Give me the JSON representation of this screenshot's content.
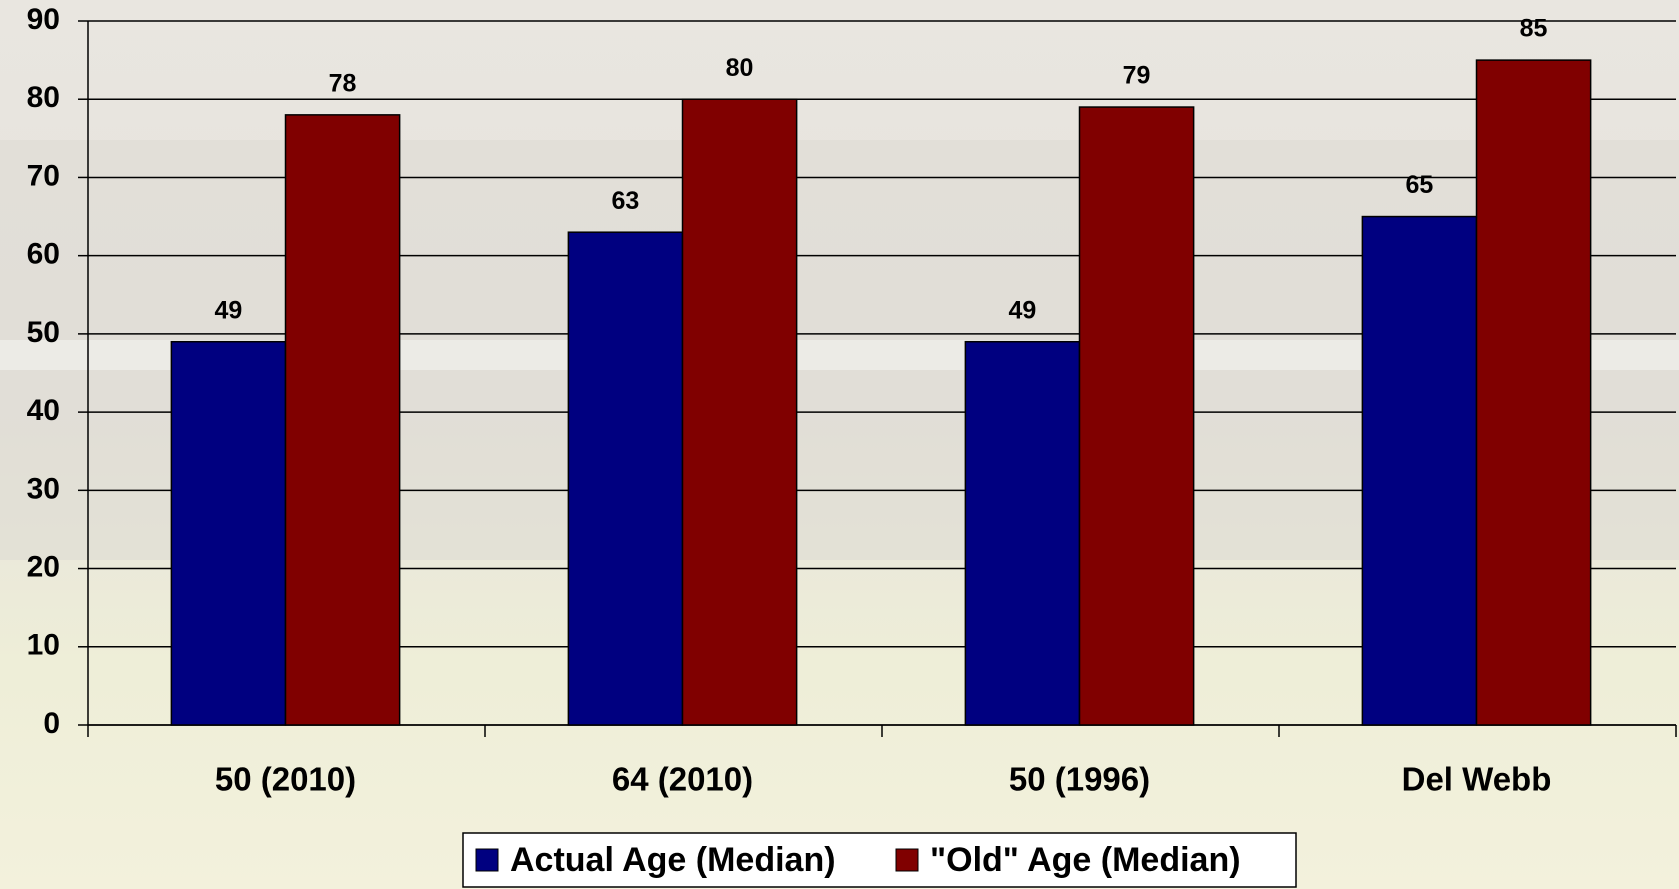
{
  "chart_data": {
    "type": "bar",
    "categories": [
      "50 (2010)",
      "64 (2010)",
      "50 (1996)",
      "Del Webb"
    ],
    "series": [
      {
        "name": "Actual Age (Median)",
        "color": "#000080",
        "values": [
          49,
          63,
          49,
          65
        ]
      },
      {
        "name": "\"Old\" Age (Median)",
        "color": "#800000",
        "values": [
          78,
          80,
          79,
          85
        ]
      }
    ],
    "ylim": [
      0,
      90
    ],
    "yticks": [
      0,
      10,
      20,
      30,
      40,
      50,
      60,
      70,
      80,
      90
    ],
    "grid": true
  }
}
